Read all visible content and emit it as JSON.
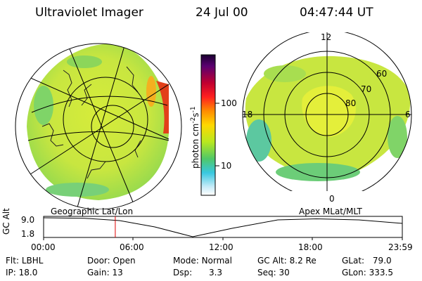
{
  "header": {
    "title": "Ultraviolet Imager",
    "date": "24 Jul 00",
    "time": "04:47:44 UT"
  },
  "colorbar": {
    "unit_label": "photon cm",
    "unit_exp1": "-2",
    "unit_mid": "s",
    "unit_exp2": "-1",
    "ticks": [
      "100",
      "10"
    ]
  },
  "polar_plot": {
    "mlt_labels": [
      "12",
      "18",
      "6",
      "0"
    ],
    "lat_labels": [
      "60",
      "70",
      "80"
    ]
  },
  "panel_labels": {
    "left": "Geographic Lat/Lon",
    "right": "Apex MLat/MLT"
  },
  "altitude_plot": {
    "ylabel": "GC Alt",
    "yticks": [
      "9.0",
      "1.8"
    ],
    "xticks": [
      "00:00",
      "06:00",
      "12:00",
      "18:00",
      "23:59"
    ],
    "marker_time": "04:47:44"
  },
  "info": {
    "flt": {
      "label": "Flt:",
      "value": "LBHL"
    },
    "door": {
      "label": "Door:",
      "value": "Open"
    },
    "mode": {
      "label": "Mode:",
      "value": "Normal"
    },
    "gcalt": {
      "label": "GC Alt:",
      "value": "8.2 Re"
    },
    "glat": {
      "label": "GLat:",
      "value": "79.0"
    },
    "ip": {
      "label": "IP:",
      "value": "18.0"
    },
    "gain": {
      "label": "Gain:",
      "value": "13"
    },
    "dsp": {
      "label": "Dsp:",
      "value": "3.3"
    },
    "seq": {
      "label": "Seq:",
      "value": "30"
    },
    "glon": {
      "label": "GLon:",
      "value": "333.5"
    }
  },
  "colors": {
    "marker": "#e00000"
  }
}
